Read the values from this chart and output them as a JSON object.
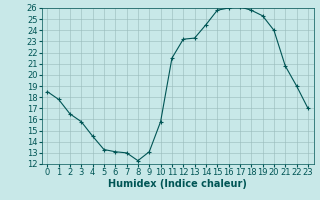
{
  "x": [
    0,
    1,
    2,
    3,
    4,
    5,
    6,
    7,
    8,
    9,
    10,
    11,
    12,
    13,
    14,
    15,
    16,
    17,
    18,
    19,
    20,
    21,
    22,
    23
  ],
  "y": [
    18.5,
    17.8,
    16.5,
    15.8,
    14.5,
    13.3,
    13.1,
    13.0,
    12.3,
    13.1,
    15.8,
    21.5,
    23.2,
    23.3,
    24.5,
    25.8,
    26.0,
    26.1,
    25.8,
    25.3,
    24.0,
    20.8,
    19.0,
    17.0
  ],
  "xlabel": "Humidex (Indice chaleur)",
  "ylim": [
    12,
    26
  ],
  "xlim": [
    -0.5,
    23.5
  ],
  "yticks": [
    12,
    13,
    14,
    15,
    16,
    17,
    18,
    19,
    20,
    21,
    22,
    23,
    24,
    25,
    26
  ],
  "xticks": [
    0,
    1,
    2,
    3,
    4,
    5,
    6,
    7,
    8,
    9,
    10,
    11,
    12,
    13,
    14,
    15,
    16,
    17,
    18,
    19,
    20,
    21,
    22,
    23
  ],
  "line_color": "#005555",
  "bg_color": "#c8e8e8",
  "grid_color": "#99bbbb",
  "tick_fontsize": 6.0,
  "xlabel_fontsize": 7.0
}
